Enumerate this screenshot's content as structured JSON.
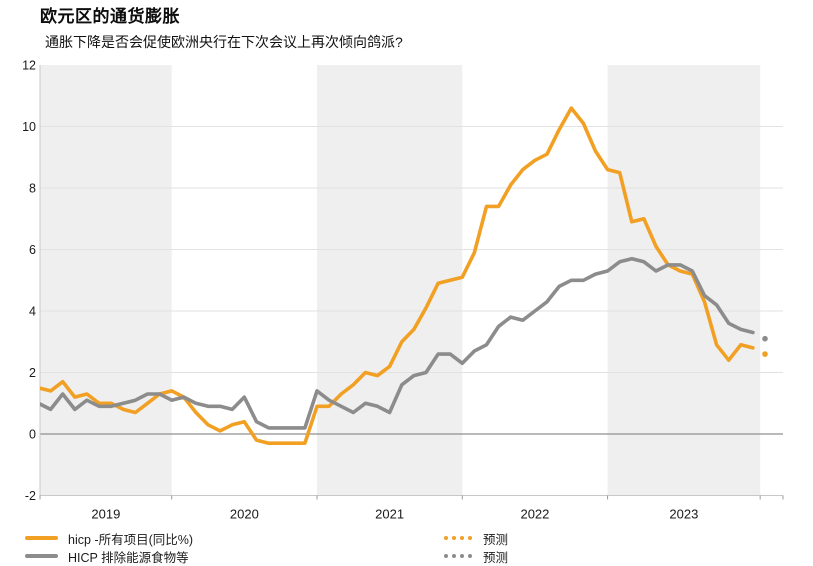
{
  "header": {
    "title": "欧元区的通货膨胀",
    "subtitle": "通胀下降是否会促使欧洲央行在下次会议上再次倾向鸽派?"
  },
  "colors": {
    "headline": "#F2A024",
    "core": "#8C8C8C",
    "band": "#EFEFEF",
    "grid": "#E2E2E2",
    "zero_line": "#8F8F8F",
    "axis": "#C8C8C8",
    "tick_text": "#1a1a1a"
  },
  "legend": {
    "forecast_label": "预测",
    "headline_swatch": "solid-orange-line",
    "core_swatch": "solid-gray-line",
    "forecast_swatch": "dotted-line"
  },
  "chart_data": {
    "type": "line",
    "title": "欧元区的通货膨胀",
    "xlabel": "",
    "ylabel": "",
    "x_monthly_from": "2019-01",
    "x_tick_labels": [
      "2019",
      "2020",
      "2021",
      "2022",
      "2023"
    ],
    "y_ticks": [
      -2,
      0,
      2,
      4,
      6,
      8,
      10,
      12
    ],
    "ylim": [
      -2,
      12
    ],
    "grid": true,
    "banded_years_shaded": [
      "2019",
      "2021",
      "2023"
    ],
    "legend_position": "bottom",
    "series": [
      {
        "name": "hicp -所有项目(同比%)",
        "color": "#F2A024",
        "values": [
          1.4,
          1.5,
          1.4,
          1.7,
          1.2,
          1.3,
          1.0,
          1.0,
          0.8,
          0.7,
          1.0,
          1.3,
          1.4,
          1.2,
          0.7,
          0.3,
          0.1,
          0.3,
          0.4,
          -0.2,
          -0.3,
          -0.3,
          -0.3,
          -0.3,
          0.9,
          0.9,
          1.3,
          1.6,
          2.0,
          1.9,
          2.2,
          3.0,
          3.4,
          4.1,
          4.9,
          5.0,
          5.1,
          5.9,
          7.4,
          7.4,
          8.1,
          8.6,
          8.9,
          9.1,
          9.9,
          10.6,
          10.1,
          9.2,
          8.6,
          8.5,
          6.9,
          7.0,
          6.1,
          5.5,
          5.3,
          5.2,
          4.3,
          2.9,
          2.4,
          2.9,
          2.8
        ],
        "forecast_values": [
          2.6
        ]
      },
      {
        "name": "HICP 排除能源食物等",
        "color": "#8C8C8C",
        "values": [
          1.1,
          1.0,
          0.8,
          1.3,
          0.8,
          1.1,
          0.9,
          0.9,
          1.0,
          1.1,
          1.3,
          1.3,
          1.1,
          1.2,
          1.0,
          0.9,
          0.9,
          0.8,
          1.2,
          0.4,
          0.2,
          0.2,
          0.2,
          0.2,
          1.4,
          1.1,
          0.9,
          0.7,
          1.0,
          0.9,
          0.7,
          1.6,
          1.9,
          2.0,
          2.6,
          2.6,
          2.3,
          2.7,
          2.9,
          3.5,
          3.8,
          3.7,
          4.0,
          4.3,
          4.8,
          5.0,
          5.0,
          5.2,
          5.3,
          5.6,
          5.7,
          5.6,
          5.3,
          5.5,
          5.5,
          5.3,
          4.5,
          4.2,
          3.6,
          3.4,
          3.3
        ],
        "forecast_values": [
          3.1
        ]
      }
    ]
  }
}
